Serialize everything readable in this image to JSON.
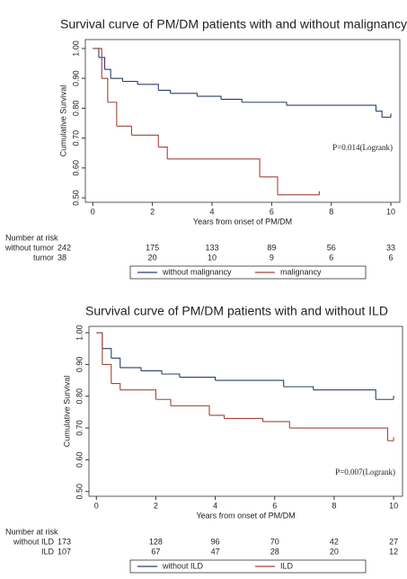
{
  "chart_data": [
    {
      "type": "step",
      "title": "Survival curve of PM/DM patients with and without malignancy",
      "xlabel": "Years from onset of PM/DM",
      "ylabel": "Cumulative Survival",
      "xlim": [
        -0.25,
        10.3
      ],
      "ylim": [
        0.485,
        1.03
      ],
      "xticks": [
        0,
        2,
        4,
        6,
        8,
        10
      ],
      "yticks": [
        {
          "value": 0.5,
          "label": "0.50"
        },
        {
          "value": 0.6,
          "label": "0.60"
        },
        {
          "value": 0.7,
          "label": "0.70"
        },
        {
          "value": 0.8,
          "label": "0.80"
        },
        {
          "value": 0.9,
          "label": "0.90"
        },
        {
          "value": 1,
          "label": "1.00"
        }
      ],
      "annotation": "P=0.014(Logrank)",
      "series": [
        {
          "name": "without malignancy",
          "color": "#2b3f6c",
          "x": [
            0,
            0.2,
            0.4,
            0.6,
            1,
            1.5,
            2.2,
            2.6,
            3.5,
            4.3,
            5,
            6.5,
            9.5,
            9.7,
            10
          ],
          "values": [
            1,
            0.97,
            0.93,
            0.9,
            0.89,
            0.88,
            0.86,
            0.85,
            0.84,
            0.83,
            0.82,
            0.81,
            0.79,
            0.77,
            0.77
          ]
        },
        {
          "name": "malignancy",
          "color": "#a2453a",
          "x": [
            0,
            0.3,
            0.5,
            0.8,
            1.3,
            2.2,
            2.5,
            5.6,
            6.2,
            7.6
          ],
          "values": [
            1,
            0.9,
            0.82,
            0.74,
            0.71,
            0.67,
            0.63,
            0.57,
            0.51,
            0.51
          ]
        }
      ],
      "risk_table": {
        "title": "Number at risk",
        "rows": [
          {
            "label": "without tumor",
            "counts": [
              242,
              175,
              133,
              89,
              56,
              33
            ]
          },
          {
            "label": "tumor",
            "counts": [
              38,
              20,
              10,
              9,
              6,
              6
            ]
          }
        ]
      }
    },
    {
      "type": "step",
      "title": "Survival curve of PM/DM patients with and without ILD",
      "xlabel": "Years from onset of PM/DM",
      "ylabel": "Cumulative Survival",
      "xlim": [
        -0.25,
        10.3
      ],
      "ylim": [
        0.485,
        1.02
      ],
      "xticks": [
        0,
        2,
        4,
        6,
        8,
        10
      ],
      "yticks": [
        {
          "value": 0.5,
          "label": "0.50"
        },
        {
          "value": 0.6,
          "label": "0.60"
        },
        {
          "value": 0.7,
          "label": "0.70"
        },
        {
          "value": 0.8,
          "label": "0.80"
        },
        {
          "value": 0.9,
          "label": "0.90"
        },
        {
          "value": 1,
          "label": "1.00"
        }
      ],
      "annotation": "P=0.007(Logrank)",
      "series": [
        {
          "name": "without ILD",
          "color": "#2b3f6c",
          "x": [
            0,
            0.2,
            0.5,
            0.8,
            1.5,
            2.2,
            2.8,
            4,
            6.3,
            7.3,
            9.4,
            10
          ],
          "values": [
            1,
            0.95,
            0.92,
            0.89,
            0.88,
            0.87,
            0.86,
            0.85,
            0.83,
            0.82,
            0.79,
            0.79
          ]
        },
        {
          "name": "ILD",
          "color": "#a2453a",
          "x": [
            0,
            0.2,
            0.5,
            0.8,
            2,
            2.5,
            3.8,
            4.3,
            5.6,
            6.5,
            9.8,
            10
          ],
          "values": [
            1,
            0.9,
            0.84,
            0.82,
            0.79,
            0.77,
            0.74,
            0.73,
            0.72,
            0.7,
            0.66,
            0.66
          ]
        }
      ],
      "risk_table": {
        "title": "Number at risk",
        "rows": [
          {
            "label": "without ILD",
            "counts": [
              173,
              128,
              96,
              70,
              42,
              27
            ]
          },
          {
            "label": "ILD",
            "counts": [
              107,
              67,
              47,
              28,
              20,
              12
            ]
          }
        ]
      }
    }
  ]
}
